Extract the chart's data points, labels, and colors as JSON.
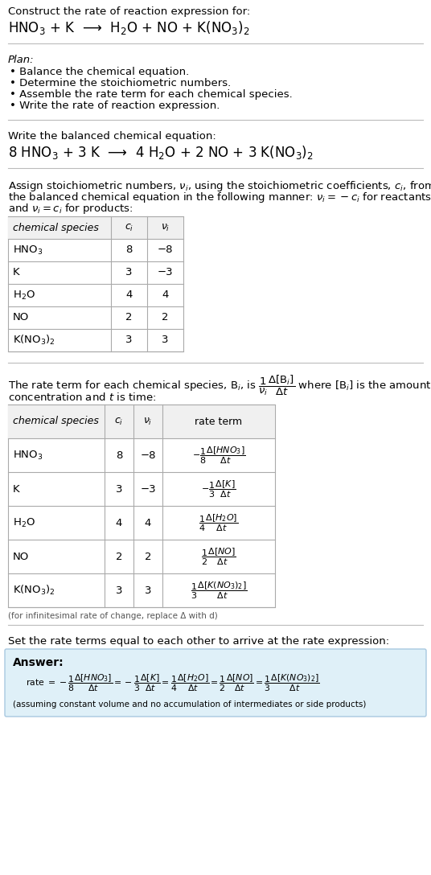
{
  "bg_color": "#ffffff",
  "text_color": "#000000",
  "title_text": "Construct the rate of reaction expression for:",
  "reaction_unbalanced": "HNO$_3$ + K  ⟶  H$_2$O + NO + K(NO$_3$)$_2$",
  "plan_header": "Plan:",
  "plan_items": [
    "• Balance the chemical equation.",
    "• Determine the stoichiometric numbers.",
    "• Assemble the rate term for each chemical species.",
    "• Write the rate of reaction expression."
  ],
  "balanced_header": "Write the balanced chemical equation:",
  "reaction_balanced": "8 HNO$_3$ + 3 K  ⟶  4 H$_2$O + 2 NO + 3 K(NO$_3$)$_2$",
  "stoich_lines": [
    "Assign stoichiometric numbers, $\\nu_i$, using the stoichiometric coefficients, $c_i$, from",
    "the balanced chemical equation in the following manner: $\\nu_i = -c_i$ for reactants",
    "and $\\nu_i = c_i$ for products:"
  ],
  "table1_headers": [
    "chemical species",
    "$c_i$",
    "$\\nu_i$"
  ],
  "table1_rows": [
    [
      "HNO$_3$",
      "8",
      "−8"
    ],
    [
      "K",
      "3",
      "−3"
    ],
    [
      "H$_2$O",
      "4",
      "4"
    ],
    [
      "NO",
      "2",
      "2"
    ],
    [
      "K(NO$_3$)$_2$",
      "3",
      "3"
    ]
  ],
  "rate_term_line1": "The rate term for each chemical species, B$_i$, is $\\dfrac{1}{\\nu_i}\\dfrac{\\Delta[\\mathrm{B}_i]}{\\Delta t}$ where [B$_i$] is the amount",
  "rate_term_line2": "concentration and $t$ is time:",
  "table2_headers": [
    "chemical species",
    "$c_i$",
    "$\\nu_i$",
    "rate term"
  ],
  "table2_rows": [
    [
      "HNO$_3$",
      "8",
      "−8",
      "$-\\dfrac{1}{8}\\dfrac{\\Delta[HNO_3]}{\\Delta t}$"
    ],
    [
      "K",
      "3",
      "−3",
      "$-\\dfrac{1}{3}\\dfrac{\\Delta[K]}{\\Delta t}$"
    ],
    [
      "H$_2$O",
      "4",
      "4",
      "$\\dfrac{1}{4}\\dfrac{\\Delta[H_2O]}{\\Delta t}$"
    ],
    [
      "NO",
      "2",
      "2",
      "$\\dfrac{1}{2}\\dfrac{\\Delta[NO]}{\\Delta t}$"
    ],
    [
      "K(NO$_3$)$_2$",
      "3",
      "3",
      "$\\dfrac{1}{3}\\dfrac{\\Delta[K(NO_3)_2]}{\\Delta t}$"
    ]
  ],
  "infinitesimal_note": "(for infinitesimal rate of change, replace Δ with d)",
  "set_rate_header": "Set the rate terms equal to each other to arrive at the rate expression:",
  "answer_label": "Answer:",
  "answer_rate": "rate $= -\\dfrac{1}{8}\\dfrac{\\Delta[HNO_3]}{\\Delta t} = -\\dfrac{1}{3}\\dfrac{\\Delta[K]}{\\Delta t} = \\dfrac{1}{4}\\dfrac{\\Delta[H_2O]}{\\Delta t} = \\dfrac{1}{2}\\dfrac{\\Delta[NO]}{\\Delta t} = \\dfrac{1}{3}\\dfrac{\\Delta[K(NO_3)_2]}{\\Delta t}$",
  "answer_note": "(assuming constant volume and no accumulation of intermediates or side products)",
  "answer_box_color": "#dff0f8",
  "answer_box_border": "#a8c8e0",
  "sep_color": "#bbbbbb",
  "table_border_color": "#aaaaaa",
  "table_header_bg": "#f0f0f0"
}
